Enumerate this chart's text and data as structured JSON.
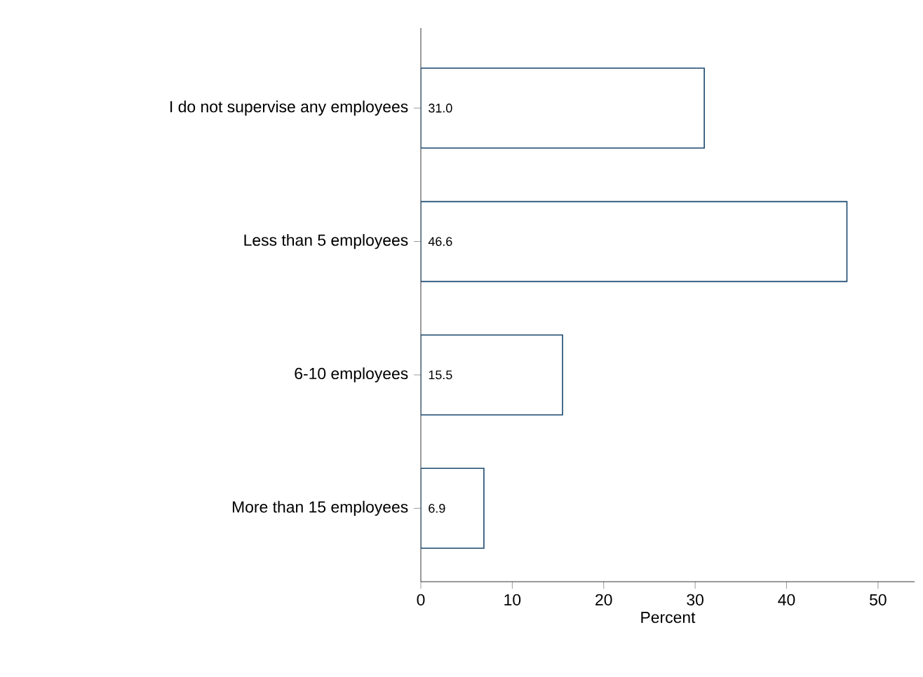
{
  "chart_data": {
    "type": "bar",
    "orientation": "horizontal",
    "xlabel": "Percent",
    "categories": [
      "I do not supervise any employees",
      "Less than 5 employees",
      "6-10 employees",
      "More than 15 employees"
    ],
    "values": [
      31.0,
      46.6,
      15.5,
      6.9
    ],
    "value_labels": [
      "31.0",
      "46.6",
      "15.5",
      "6.9"
    ],
    "color": "#ffffff",
    "xlim": [
      0,
      54
    ],
    "xticks": [
      0,
      10,
      20,
      30,
      40,
      50
    ],
    "grid": false
  }
}
